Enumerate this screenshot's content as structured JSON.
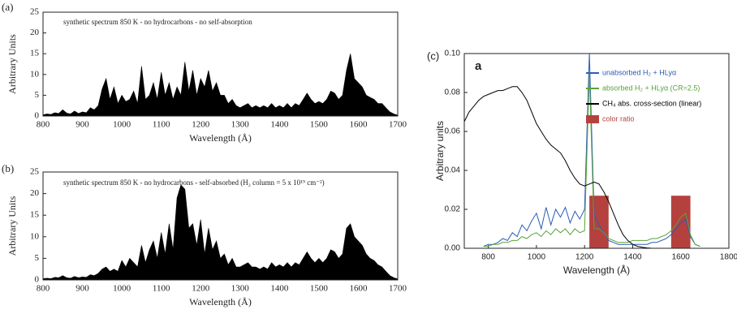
{
  "chart_data": [
    {
      "type": "area",
      "label": "(a)",
      "annotation": "synthetic spectrum 850 K  -  no hydrocarbons  -  no self-absorption",
      "x_label": "Wavelength (Å)",
      "y_label": "Arbitrary Units",
      "color": "#000000",
      "xlim": [
        800,
        1700
      ],
      "ylim": [
        0,
        25
      ],
      "xticks": [
        800,
        900,
        1000,
        1100,
        1200,
        1300,
        1400,
        1500,
        1600,
        1700
      ],
      "yticks": [
        0,
        5,
        10,
        15,
        20,
        25
      ],
      "x": [
        800,
        810,
        820,
        830,
        840,
        850,
        860,
        870,
        880,
        890,
        900,
        910,
        920,
        930,
        940,
        950,
        960,
        970,
        980,
        990,
        1000,
        1010,
        1020,
        1030,
        1040,
        1050,
        1060,
        1070,
        1080,
        1090,
        1100,
        1110,
        1120,
        1130,
        1140,
        1150,
        1160,
        1170,
        1180,
        1190,
        1200,
        1210,
        1220,
        1230,
        1240,
        1250,
        1260,
        1270,
        1280,
        1290,
        1300,
        1310,
        1320,
        1330,
        1340,
        1350,
        1360,
        1370,
        1380,
        1390,
        1400,
        1410,
        1420,
        1430,
        1440,
        1450,
        1460,
        1470,
        1480,
        1490,
        1500,
        1510,
        1520,
        1530,
        1540,
        1550,
        1560,
        1570,
        1580,
        1590,
        1600,
        1610,
        1620,
        1630,
        1640,
        1650,
        1660,
        1670,
        1680,
        1690,
        1700
      ],
      "values": [
        0.3,
        0.5,
        0.4,
        0.8,
        0.6,
        1.5,
        0.7,
        0.5,
        1.2,
        0.6,
        1.0,
        0.8,
        2.0,
        1.5,
        2.5,
        6.5,
        9,
        4,
        7,
        3,
        5,
        3.5,
        4,
        6,
        3,
        12,
        4,
        5,
        8,
        4,
        10.5,
        5,
        8,
        4,
        7,
        5,
        13,
        6,
        11,
        5,
        9,
        7,
        11,
        6,
        8,
        5,
        5,
        3,
        4,
        2.5,
        2,
        2.5,
        3,
        2,
        2.5,
        2,
        2.5,
        2,
        3,
        2,
        2.5,
        2,
        3,
        2,
        3,
        2.5,
        4,
        5.5,
        4,
        3,
        3.5,
        3,
        4,
        6,
        5.5,
        4,
        5,
        11,
        15,
        9,
        8,
        7,
        5,
        4.5,
        4,
        3,
        3,
        2,
        1,
        0.5,
        0.2
      ]
    },
    {
      "type": "area",
      "label": "(b)",
      "annotation": "synthetic spectrum 850 K  -  no hydrocarbons  -  self-absorbed   (H₂ column = 5 x 10¹⁹ cm⁻²)",
      "x_label": "Wavelength (Å)",
      "y_label": "Arbitrary Units",
      "color": "#000000",
      "xlim": [
        800,
        1700
      ],
      "ylim": [
        0,
        25
      ],
      "xticks": [
        800,
        900,
        1000,
        1100,
        1200,
        1300,
        1400,
        1500,
        1600,
        1700
      ],
      "yticks": [
        0,
        5,
        10,
        15,
        20,
        25
      ],
      "x": [
        800,
        810,
        820,
        830,
        840,
        850,
        860,
        870,
        880,
        890,
        900,
        910,
        920,
        930,
        940,
        950,
        960,
        970,
        980,
        990,
        1000,
        1010,
        1020,
        1030,
        1040,
        1050,
        1060,
        1070,
        1080,
        1090,
        1100,
        1110,
        1120,
        1130,
        1140,
        1150,
        1160,
        1170,
        1180,
        1190,
        1200,
        1210,
        1220,
        1230,
        1240,
        1250,
        1260,
        1270,
        1280,
        1290,
        1300,
        1310,
        1320,
        1330,
        1340,
        1350,
        1360,
        1370,
        1380,
        1390,
        1400,
        1410,
        1420,
        1430,
        1440,
        1450,
        1460,
        1470,
        1480,
        1490,
        1500,
        1510,
        1520,
        1530,
        1540,
        1550,
        1560,
        1570,
        1580,
        1590,
        1600,
        1610,
        1620,
        1630,
        1640,
        1650,
        1660,
        1670,
        1680,
        1690,
        1700
      ],
      "values": [
        0.3,
        0.4,
        0.3,
        0.6,
        0.5,
        1.0,
        0.5,
        0.4,
        0.8,
        0.5,
        0.7,
        0.6,
        1.2,
        1.0,
        1.5,
        2.5,
        3,
        2,
        2.5,
        2,
        4.5,
        3,
        5,
        4,
        3,
        8,
        4,
        7,
        9,
        5,
        11,
        6,
        13,
        7,
        19,
        22,
        21,
        12,
        13,
        8,
        14,
        6,
        12,
        7,
        9,
        5,
        6,
        3.5,
        5,
        3,
        3,
        3.5,
        4,
        3,
        3,
        2.5,
        3,
        2.5,
        4,
        3,
        3.5,
        3,
        4,
        3,
        4,
        3.5,
        5,
        6.5,
        5,
        4,
        5,
        4,
        5,
        7,
        6.5,
        5,
        6,
        12,
        13,
        10,
        9,
        8,
        6,
        5,
        4.5,
        3.5,
        3,
        2,
        1,
        0.5,
        0.2
      ]
    },
    {
      "type": "line",
      "label": "(c)",
      "panel_label": "a",
      "x_label": "Wavelength (Å)",
      "y_label": "Arbitrary units",
      "xlim": [
        700,
        1800
      ],
      "ylim": [
        0,
        0.1
      ],
      "xticks": [
        800,
        1000,
        1200,
        1400,
        1600,
        1800
      ],
      "yticks": [
        {
          "value": 0,
          "label": "0.00"
        },
        {
          "value": 0.02,
          "label": "0.02"
        },
        {
          "value": 0.04,
          "label": "0.04"
        },
        {
          "value": 0.06,
          "label": "0.06"
        },
        {
          "value": 0.08,
          "label": "0.08"
        },
        {
          "value": 0.1,
          "label": "0.10"
        }
      ],
      "x": [
        700,
        720,
        740,
        760,
        780,
        800,
        820,
        840,
        860,
        880,
        900,
        920,
        940,
        960,
        980,
        1000,
        1020,
        1040,
        1060,
        1080,
        1100,
        1120,
        1140,
        1160,
        1180,
        1200,
        1220,
        1240,
        1260,
        1280,
        1300,
        1320,
        1340,
        1360,
        1380,
        1400,
        1420,
        1440,
        1460,
        1480,
        1500,
        1520,
        1540,
        1560,
        1580,
        1600,
        1620,
        1640,
        1660,
        1680,
        1700,
        1720,
        1740,
        1760,
        1780,
        1800
      ],
      "bands": {
        "name": "color ratio",
        "color": "#b5413e",
        "x0": [
          1220,
          1560
        ],
        "x1": [
          1300,
          1640
        ],
        "values": [
          0.027,
          0.027
        ]
      },
      "series": [
        {
          "name": "unabsorbed H₂ + HLyα",
          "color": "#2b5bb8",
          "values": [
            null,
            null,
            null,
            null,
            0.001,
            0.002,
            0.002,
            0.003,
            0.005,
            0.004,
            0.008,
            0.006,
            0.012,
            0.009,
            0.014,
            0.018,
            0.01,
            0.021,
            0.012,
            0.02,
            0.016,
            0.021,
            0.013,
            0.019,
            0.015,
            0.02,
            0.1,
            0.017,
            0.012,
            0.008,
            0.004,
            0.003,
            0.002,
            0.002,
            0.002,
            0.002,
            0.002,
            0.002,
            0.002,
            0.003,
            0.003,
            0.004,
            0.005,
            0.007,
            0.01,
            0.013,
            0.015,
            0.006,
            0.002,
            0.001,
            null,
            null,
            null,
            null,
            null,
            null
          ]
        },
        {
          "name": "absorbed H₂ + HLyα (CR=2.5)",
          "color": "#5aa23c",
          "values": [
            null,
            null,
            null,
            null,
            0.001,
            0.001,
            0.002,
            0.002,
            0.003,
            0.003,
            0.004,
            0.004,
            0.006,
            0.005,
            0.007,
            0.008,
            0.006,
            0.009,
            0.007,
            0.01,
            0.008,
            0.01,
            0.007,
            0.01,
            0.008,
            0.009,
            0.09,
            0.01,
            0.01,
            0.008,
            0.005,
            0.004,
            0.003,
            0.003,
            0.003,
            0.004,
            0.004,
            0.004,
            0.004,
            0.005,
            0.005,
            0.006,
            0.007,
            0.009,
            0.012,
            0.016,
            0.018,
            0.007,
            0.002,
            0.001,
            null,
            null,
            null,
            null,
            null,
            null
          ]
        },
        {
          "name": "CH₄ abs. cross-section (linear)",
          "color": "#000000",
          "values": [
            0.065,
            0.07,
            0.073,
            0.076,
            0.078,
            0.079,
            0.08,
            0.081,
            0.081,
            0.082,
            0.083,
            0.083,
            0.08,
            0.076,
            0.07,
            0.064,
            0.06,
            0.056,
            0.053,
            0.051,
            0.049,
            0.045,
            0.04,
            0.036,
            0.033,
            0.032,
            0.033,
            0.034,
            0.033,
            0.029,
            0.024,
            0.018,
            0.012,
            0.007,
            0.004,
            0.002,
            0.001,
            0.0005,
            0.0002,
            0,
            0,
            0,
            0,
            0,
            0,
            0,
            0,
            0,
            0,
            0,
            0,
            0,
            0,
            0,
            0,
            0
          ]
        }
      ]
    }
  ]
}
